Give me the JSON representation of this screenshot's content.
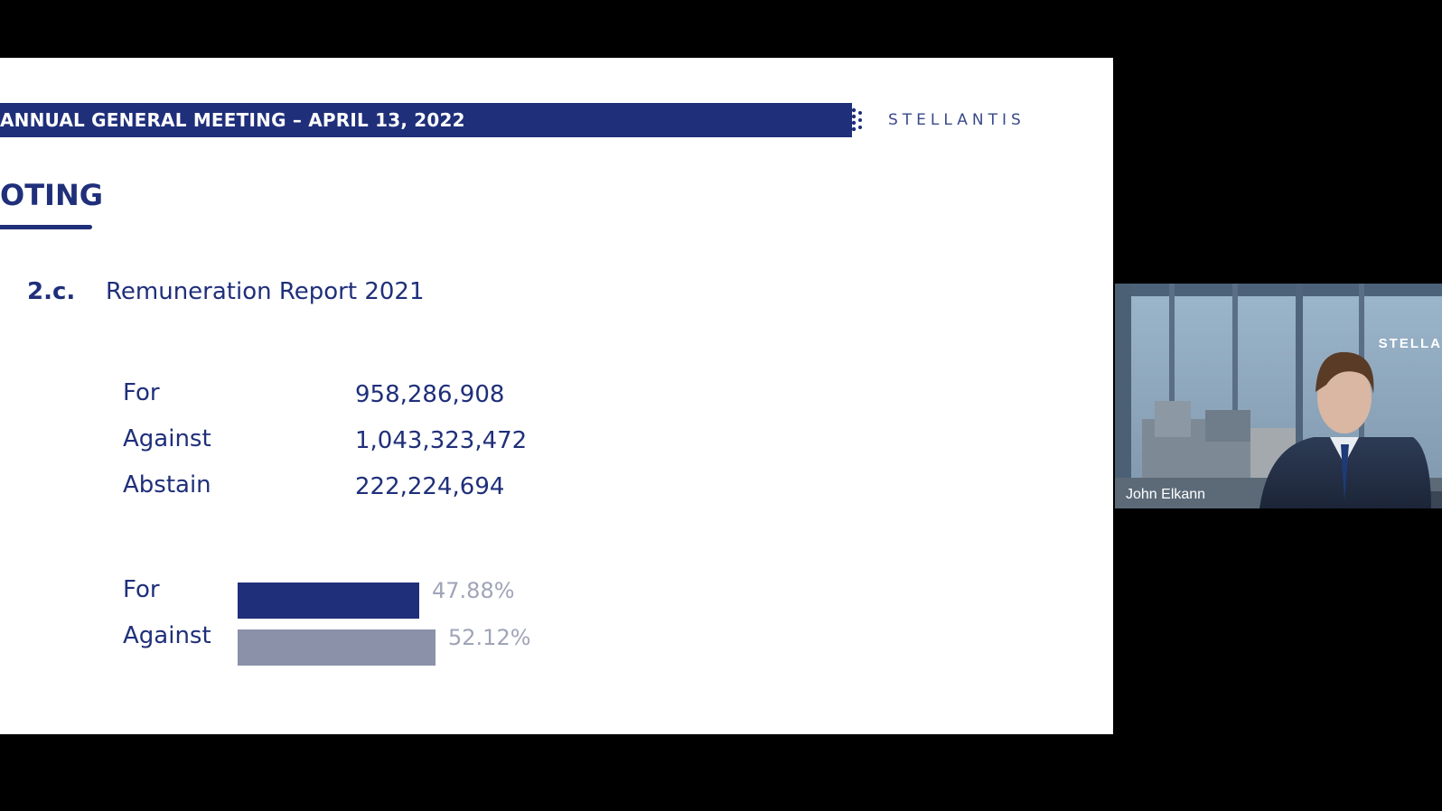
{
  "slide": {
    "header_title": "ANNUAL GENERAL MEETING – APRIL 13, 2022",
    "logo_text": "STELLANTIS",
    "section_title": "OTING",
    "item_number": "2.c.",
    "item_title": "Remuneration Report 2021",
    "votes": [
      {
        "label": "For",
        "value": "958,286,908"
      },
      {
        "label": "Against",
        "value": "1,043,323,472"
      },
      {
        "label": "Abstain",
        "value": "222,224,694"
      }
    ],
    "bars": [
      {
        "label": "For",
        "percent_text": "47.88%",
        "percent": 47.88,
        "color": "#1f2f7a"
      },
      {
        "label": "Against",
        "percent_text": "52.12%",
        "percent": 52.12,
        "color": "#8a91a8"
      }
    ]
  },
  "video": {
    "participant_name": "John Elkann",
    "wall_logo": "STELLA"
  },
  "colors": {
    "brand_blue": "#1f2f7a",
    "against_gray": "#8a91a8",
    "pct_text": "#a0a4b8"
  }
}
